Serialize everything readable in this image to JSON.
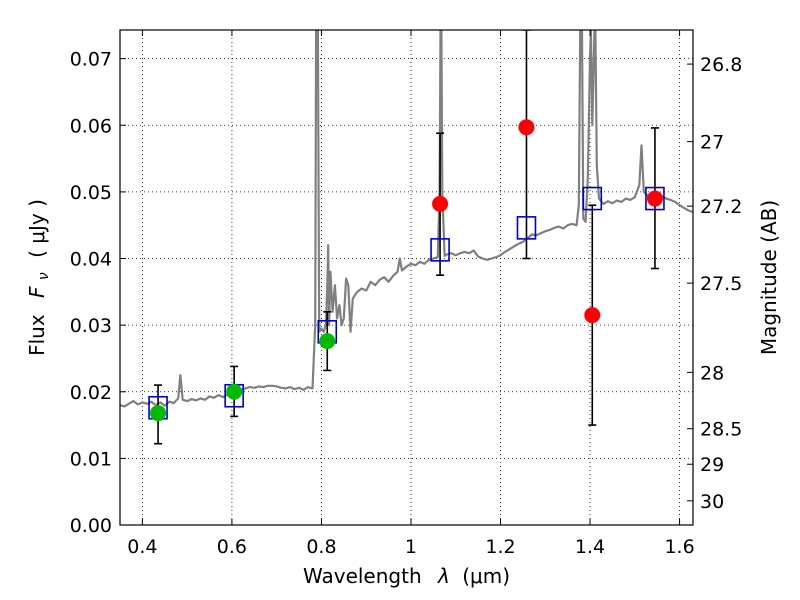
{
  "chart_data": {
    "type": "scatter",
    "xlabel_text": "Wavelength",
    "xlabel_symbol": "λ",
    "xlabel_unit": "(μm)",
    "ylabel_text": "Flux",
    "ylabel_symbol": "F",
    "ylabel_subscript": "ν",
    "ylabel_unit": "( μJy )",
    "y2label": "Magnitude (AB)",
    "xlim": [
      0.35,
      1.63
    ],
    "ylim": [
      0.0,
      0.0743
    ],
    "grid": true,
    "x_ticks": [
      0.4,
      0.6,
      0.8,
      1.0,
      1.2,
      1.4,
      1.6
    ],
    "x_tick_labels": [
      "0.4",
      "0.6",
      "0.8",
      "1",
      "1.2",
      "1.4",
      "1.6"
    ],
    "y_ticks": [
      0.0,
      0.01,
      0.02,
      0.03,
      0.04,
      0.05,
      0.06,
      0.07
    ],
    "y_tick_labels": [
      "0.00",
      "0.01",
      "0.02",
      "0.03",
      "0.04",
      "0.05",
      "0.06",
      "0.07"
    ],
    "y2_ticks": [
      26.8,
      27.0,
      27.2,
      27.5,
      28.0,
      28.5,
      29.0,
      30.0
    ],
    "y2_tick_labels": [
      "26.8",
      "27",
      "27.2",
      "27.5",
      "28",
      "28.5",
      "29",
      "30"
    ],
    "colors": {
      "spectrum": "#808080",
      "green_points": "#00bb00",
      "red_points": "#ff0000",
      "model_boxes": "#0000cc",
      "error_bars": "#000000"
    },
    "series": [
      {
        "kind": "line",
        "points": [
          [
            0.35,
            0.018
          ],
          [
            0.36,
            0.0178
          ],
          [
            0.37,
            0.0182
          ],
          [
            0.38,
            0.0186
          ],
          [
            0.39,
            0.0181
          ],
          [
            0.4,
            0.0184
          ],
          [
            0.41,
            0.0182
          ],
          [
            0.42,
            0.0185
          ],
          [
            0.43,
            0.018
          ],
          [
            0.44,
            0.0184
          ],
          [
            0.45,
            0.0179
          ],
          [
            0.46,
            0.0185
          ],
          [
            0.47,
            0.0183
          ],
          [
            0.48,
            0.019
          ],
          [
            0.485,
            0.0225
          ],
          [
            0.49,
            0.0188
          ],
          [
            0.5,
            0.0186
          ],
          [
            0.51,
            0.0189
          ],
          [
            0.52,
            0.0187
          ],
          [
            0.53,
            0.019
          ],
          [
            0.54,
            0.0188
          ],
          [
            0.55,
            0.0193
          ],
          [
            0.56,
            0.0191
          ],
          [
            0.57,
            0.0195
          ],
          [
            0.58,
            0.0192
          ],
          [
            0.59,
            0.0196
          ],
          [
            0.6,
            0.0198
          ],
          [
            0.61,
            0.0201
          ],
          [
            0.62,
            0.0203
          ],
          [
            0.63,
            0.0205
          ],
          [
            0.64,
            0.0207
          ],
          [
            0.65,
            0.0206
          ],
          [
            0.66,
            0.0208
          ],
          [
            0.67,
            0.0207
          ],
          [
            0.68,
            0.0209
          ],
          [
            0.69,
            0.0209
          ],
          [
            0.7,
            0.0208
          ],
          [
            0.71,
            0.0206
          ],
          [
            0.72,
            0.0205
          ],
          [
            0.73,
            0.0207
          ],
          [
            0.74,
            0.0204
          ],
          [
            0.75,
            0.0206
          ],
          [
            0.76,
            0.0203
          ],
          [
            0.77,
            0.0207
          ],
          [
            0.78,
            0.0205
          ],
          [
            0.786,
            0.03
          ],
          [
            0.788,
            0.0743
          ],
          [
            0.792,
            0.0743
          ],
          [
            0.795,
            0.029
          ],
          [
            0.8,
            0.0295
          ],
          [
            0.805,
            0.029
          ],
          [
            0.81,
            0.03
          ],
          [
            0.813,
            0.036
          ],
          [
            0.815,
            0.042
          ],
          [
            0.817,
            0.03
          ],
          [
            0.82,
            0.038
          ],
          [
            0.825,
            0.032
          ],
          [
            0.83,
            0.036
          ],
          [
            0.835,
            0.031
          ],
          [
            0.84,
            0.033
          ],
          [
            0.845,
            0.03
          ],
          [
            0.85,
            0.031
          ],
          [
            0.855,
            0.037
          ],
          [
            0.86,
            0.036
          ],
          [
            0.865,
            0.029
          ],
          [
            0.87,
            0.034
          ],
          [
            0.88,
            0.035
          ],
          [
            0.89,
            0.0355
          ],
          [
            0.9,
            0.0352
          ],
          [
            0.91,
            0.0365
          ],
          [
            0.92,
            0.036
          ],
          [
            0.93,
            0.0368
          ],
          [
            0.94,
            0.0372
          ],
          [
            0.95,
            0.0365
          ],
          [
            0.96,
            0.0374
          ],
          [
            0.97,
            0.038
          ],
          [
            0.975,
            0.04
          ],
          [
            0.98,
            0.0382
          ],
          [
            0.99,
            0.0388
          ],
          [
            1.0,
            0.0392
          ],
          [
            1.01,
            0.039
          ],
          [
            1.02,
            0.0395
          ],
          [
            1.03,
            0.0392
          ],
          [
            1.04,
            0.0398
          ],
          [
            1.05,
            0.04
          ],
          [
            1.06,
            0.0402
          ],
          [
            1.064,
            0.05
          ],
          [
            1.066,
            0.0743
          ],
          [
            1.068,
            0.0743
          ],
          [
            1.07,
            0.05
          ],
          [
            1.075,
            0.0404
          ],
          [
            1.08,
            0.0406
          ],
          [
            1.09,
            0.0408
          ],
          [
            1.1,
            0.0405
          ],
          [
            1.11,
            0.0408
          ],
          [
            1.12,
            0.041
          ],
          [
            1.13,
            0.0408
          ],
          [
            1.14,
            0.0412
          ],
          [
            1.15,
            0.0403
          ],
          [
            1.16,
            0.04
          ],
          [
            1.17,
            0.0398
          ],
          [
            1.18,
            0.04
          ],
          [
            1.19,
            0.0402
          ],
          [
            1.2,
            0.0405
          ],
          [
            1.21,
            0.041
          ],
          [
            1.22,
            0.0414
          ],
          [
            1.23,
            0.0418
          ],
          [
            1.24,
            0.0422
          ],
          [
            1.25,
            0.0425
          ],
          [
            1.26,
            0.043
          ],
          [
            1.27,
            0.0436
          ],
          [
            1.28,
            0.0435
          ],
          [
            1.29,
            0.0438
          ],
          [
            1.3,
            0.0441
          ],
          [
            1.31,
            0.0443
          ],
          [
            1.32,
            0.0446
          ],
          [
            1.33,
            0.0448
          ],
          [
            1.34,
            0.0445
          ],
          [
            1.35,
            0.045
          ],
          [
            1.36,
            0.0452
          ],
          [
            1.37,
            0.045
          ],
          [
            1.375,
            0.048
          ],
          [
            1.378,
            0.0743
          ],
          [
            1.382,
            0.0743
          ],
          [
            1.385,
            0.046
          ],
          [
            1.39,
            0.0455
          ],
          [
            1.395,
            0.052
          ],
          [
            1.4,
            0.07
          ],
          [
            1.402,
            0.0743
          ],
          [
            1.405,
            0.06
          ],
          [
            1.41,
            0.0743
          ],
          [
            1.412,
            0.0743
          ],
          [
            1.415,
            0.054
          ],
          [
            1.42,
            0.049
          ],
          [
            1.43,
            0.0482
          ],
          [
            1.44,
            0.0486
          ],
          [
            1.45,
            0.0483
          ],
          [
            1.46,
            0.0487
          ],
          [
            1.47,
            0.0485
          ],
          [
            1.48,
            0.049
          ],
          [
            1.49,
            0.0488
          ],
          [
            1.5,
            0.0492
          ],
          [
            1.51,
            0.051
          ],
          [
            1.515,
            0.057
          ],
          [
            1.52,
            0.05
          ],
          [
            1.53,
            0.0494
          ],
          [
            1.54,
            0.0497
          ],
          [
            1.55,
            0.0495
          ],
          [
            1.56,
            0.0494
          ],
          [
            1.57,
            0.049
          ],
          [
            1.58,
            0.0488
          ],
          [
            1.59,
            0.0485
          ],
          [
            1.6,
            0.048
          ],
          [
            1.61,
            0.0476
          ],
          [
            1.62,
            0.0472
          ],
          [
            1.63,
            0.047
          ]
        ]
      },
      {
        "kind": "points",
        "points": [
          {
            "x": 0.435,
            "y": 0.0168,
            "yerr_low": 0.0122,
            "yerr_high": 0.021
          },
          {
            "x": 0.605,
            "y": 0.02,
            "yerr_low": 0.0163,
            "yerr_high": 0.0238
          },
          {
            "x": 0.813,
            "y": 0.0276,
            "yerr_low": 0.0232,
            "yerr_high": 0.032
          }
        ]
      },
      {
        "kind": "points",
        "points": [
          {
            "x": 1.065,
            "y": 0.0482,
            "yerr_low": 0.0375,
            "yerr_high": 0.0588
          },
          {
            "x": 1.258,
            "y": 0.0597,
            "yerr_low": 0.04,
            "yerr_high": 0.0743
          },
          {
            "x": 1.405,
            "y": 0.0315,
            "yerr_low": 0.015,
            "yerr_high": 0.048
          },
          {
            "x": 1.545,
            "y": 0.049,
            "yerr_low": 0.0385,
            "yerr_high": 0.0596
          }
        ]
      },
      {
        "kind": "boxes",
        "points": [
          {
            "x": 0.435,
            "y": 0.0176
          },
          {
            "x": 0.605,
            "y": 0.0194
          },
          {
            "x": 0.813,
            "y": 0.029
          },
          {
            "x": 1.065,
            "y": 0.0413
          },
          {
            "x": 1.258,
            "y": 0.0446
          },
          {
            "x": 1.405,
            "y": 0.049
          },
          {
            "x": 1.545,
            "y": 0.049
          }
        ]
      }
    ]
  }
}
